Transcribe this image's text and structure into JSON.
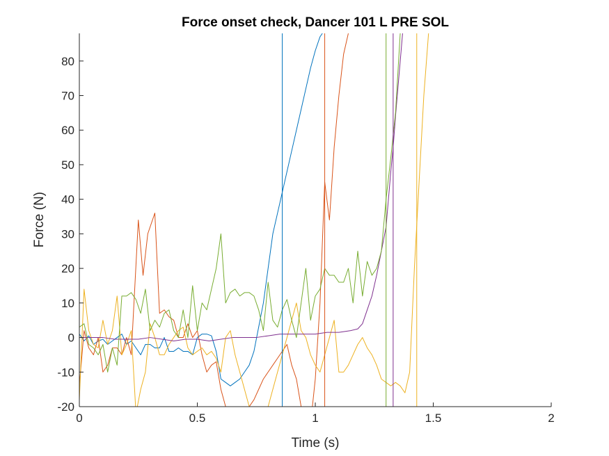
{
  "chart_data": {
    "type": "line",
    "title": "Force onset check, Dancer 101 L PRE SOL",
    "xlabel": "Time (s)",
    "ylabel": "Force (N)",
    "xlim": [
      0,
      2
    ],
    "ylim": [
      -20,
      88
    ],
    "xticks": [
      0,
      0.5,
      1,
      1.5,
      2
    ],
    "xtick_labels": [
      "0",
      "0.5",
      "1",
      "1.5",
      "2"
    ],
    "yticks": [
      -20,
      -10,
      0,
      10,
      20,
      30,
      40,
      50,
      60,
      70,
      80
    ],
    "ytick_labels": [
      "-20",
      "-10",
      "0",
      "10",
      "20",
      "30",
      "40",
      "50",
      "60",
      "70",
      "80"
    ],
    "grid": false,
    "series": [
      {
        "color": "#0072BD",
        "x": [
          0,
          0.02,
          0.04,
          0.06,
          0.08,
          0.1,
          0.12,
          0.14,
          0.16,
          0.18,
          0.2,
          0.22,
          0.24,
          0.26,
          0.28,
          0.3,
          0.32,
          0.34,
          0.36,
          0.38,
          0.4,
          0.42,
          0.44,
          0.46,
          0.48,
          0.5,
          0.52,
          0.54,
          0.56,
          0.58,
          0.6,
          0.62,
          0.64,
          0.66,
          0.68,
          0.7,
          0.72,
          0.74,
          0.76,
          0.78,
          0.8,
          0.82,
          0.84,
          0.86,
          0.88,
          0.9,
          0.92,
          0.94,
          0.96,
          0.98,
          1.0,
          1.02,
          1.03
        ],
        "y": [
          1,
          -1,
          0.5,
          -2,
          -1,
          -0.5,
          -2,
          -1,
          0,
          1,
          -2,
          -1,
          -3,
          -5,
          -2,
          -2,
          -3,
          -3,
          0,
          -4,
          -4,
          -3,
          -4,
          -4,
          -5,
          0,
          1,
          1,
          0.5,
          -4,
          -12,
          -13,
          -14,
          -13,
          -12,
          -10,
          -8,
          -4,
          3,
          10,
          20,
          30,
          36,
          42,
          48,
          54,
          60,
          66,
          72,
          78,
          83,
          87,
          88
        ]
      },
      {
        "color": "#D95319",
        "x": [
          0,
          0.02,
          0.04,
          0.06,
          0.08,
          0.1,
          0.12,
          0.14,
          0.16,
          0.18,
          0.2,
          0.22,
          0.25,
          0.27,
          0.29,
          0.32,
          0.34,
          0.36,
          0.38,
          0.4,
          0.42,
          0.44,
          0.46,
          0.48,
          0.5,
          0.52,
          0.54,
          0.56,
          0.58,
          0.6,
          0.62,
          0.64,
          0.66,
          0.68,
          0.7,
          0.72,
          0.74,
          0.76,
          0.78,
          0.8,
          0.82,
          0.84,
          0.86,
          0.88,
          0.9,
          0.92,
          0.94,
          0.96,
          0.98,
          1.0,
          1.02,
          1.04,
          1.06,
          1.08,
          1.1,
          1.12,
          1.14
        ],
        "y": [
          -14,
          2,
          -3,
          -5,
          0,
          -10,
          -8,
          -3,
          -3,
          -5,
          0,
          -5,
          34,
          18,
          30,
          36,
          7,
          8,
          6,
          5,
          0,
          0,
          4,
          0,
          2,
          -5,
          -10,
          -8,
          -7,
          -15,
          -20,
          -25,
          -28,
          -30,
          -22,
          -20,
          -18,
          -15,
          -12,
          -10,
          -8,
          -6,
          -4,
          -2,
          -8,
          -12,
          -20,
          -30,
          -25,
          -12,
          10,
          45,
          34,
          55,
          70,
          82,
          88
        ]
      },
      {
        "color": "#EDB120",
        "x": [
          0,
          0.02,
          0.04,
          0.06,
          0.08,
          0.1,
          0.12,
          0.14,
          0.16,
          0.18,
          0.2,
          0.22,
          0.24,
          0.26,
          0.28,
          0.3,
          0.32,
          0.34,
          0.36,
          0.38,
          0.4,
          0.42,
          0.44,
          0.46,
          0.48,
          0.5,
          0.52,
          0.54,
          0.56,
          0.58,
          0.6,
          0.62,
          0.64,
          0.66,
          0.68,
          0.7,
          0.72,
          0.74,
          0.76,
          0.78,
          0.8,
          0.82,
          0.84,
          0.86,
          0.88,
          0.9,
          0.92,
          0.94,
          0.96,
          0.98,
          1.0,
          1.02,
          1.04,
          1.06,
          1.08,
          1.1,
          1.12,
          1.14,
          1.16,
          1.18,
          1.2,
          1.22,
          1.24,
          1.26,
          1.28,
          1.3,
          1.32,
          1.34,
          1.36,
          1.38,
          1.4,
          1.42,
          1.44,
          1.46,
          1.48
        ],
        "y": [
          -18,
          14,
          2,
          -2,
          -3,
          5,
          -2,
          2,
          12,
          -5,
          -2,
          2,
          -22,
          -15,
          -10,
          4,
          0,
          -5,
          -5,
          -2,
          0,
          2,
          3,
          -3,
          -5,
          -4,
          -3,
          -5,
          -4,
          -6,
          -10,
          0,
          2,
          -5,
          -10,
          -15,
          -20,
          -22,
          -25,
          -22,
          -20,
          -15,
          -10,
          -5,
          0,
          5,
          10,
          2,
          0,
          -5,
          -8,
          -10,
          -5,
          0,
          5,
          -10,
          -10,
          -8,
          -5,
          -2,
          0,
          -3,
          -5,
          -8,
          -12,
          -13,
          -14,
          -13,
          -14,
          -16,
          -10,
          20,
          45,
          70,
          88
        ]
      },
      {
        "color": "#7E2F8E",
        "x": [
          0,
          0.05,
          0.1,
          0.15,
          0.2,
          0.25,
          0.3,
          0.35,
          0.4,
          0.45,
          0.5,
          0.55,
          0.6,
          0.65,
          0.7,
          0.75,
          0.8,
          0.85,
          0.9,
          0.95,
          1.0,
          1.05,
          1.1,
          1.15,
          1.18,
          1.2,
          1.22,
          1.24,
          1.26,
          1.28,
          1.3,
          1.31,
          1.32,
          1.33,
          1.34,
          1.35,
          1.36,
          1.37
        ],
        "y": [
          0,
          0,
          0,
          -0.5,
          -0.5,
          -0.5,
          0,
          -0.5,
          -1,
          -0.5,
          -0.5,
          -1,
          -0.5,
          0,
          0,
          0,
          0.5,
          1,
          1,
          1,
          1,
          1.5,
          1.5,
          2,
          2.5,
          4,
          8,
          12,
          18,
          25,
          32,
          40,
          48,
          55,
          64,
          72,
          80,
          88
        ]
      },
      {
        "color": "#77AC30",
        "x": [
          0,
          0.02,
          0.04,
          0.06,
          0.08,
          0.1,
          0.12,
          0.14,
          0.16,
          0.18,
          0.2,
          0.22,
          0.24,
          0.26,
          0.28,
          0.3,
          0.32,
          0.34,
          0.36,
          0.38,
          0.4,
          0.42,
          0.44,
          0.46,
          0.48,
          0.5,
          0.52,
          0.54,
          0.56,
          0.58,
          0.6,
          0.62,
          0.64,
          0.66,
          0.68,
          0.7,
          0.72,
          0.74,
          0.76,
          0.78,
          0.8,
          0.82,
          0.84,
          0.86,
          0.88,
          0.9,
          0.92,
          0.94,
          0.96,
          0.98,
          1.0,
          1.02,
          1.04,
          1.06,
          1.08,
          1.1,
          1.12,
          1.14,
          1.16,
          1.18,
          1.2,
          1.22,
          1.24,
          1.26,
          1.28,
          1.3,
          1.32,
          1.34,
          1.36
        ],
        "y": [
          3,
          4,
          -2,
          -3,
          -5,
          -2,
          -10,
          -3,
          -8,
          12,
          12,
          13,
          11,
          7,
          14,
          2,
          5,
          3,
          7,
          8,
          2,
          0,
          8,
          0,
          15,
          2,
          10,
          8,
          14,
          20,
          30,
          10,
          13,
          14,
          12,
          13,
          13,
          12,
          8,
          2,
          16,
          5,
          3,
          8,
          11,
          5,
          0,
          10,
          20,
          5,
          12,
          14,
          20,
          18,
          18,
          16,
          16,
          20,
          10,
          25,
          12,
          22,
          18,
          20,
          25,
          40,
          52,
          65,
          88
        ]
      }
    ],
    "vertical_lines": [
      {
        "x": 0.86,
        "color": "#0072BD"
      },
      {
        "x": 1.04,
        "color": "#D95319"
      },
      {
        "x": 1.3,
        "color": "#77AC30"
      },
      {
        "x": 1.33,
        "color": "#7E2F8E"
      },
      {
        "x": 1.43,
        "color": "#EDB120"
      }
    ]
  }
}
